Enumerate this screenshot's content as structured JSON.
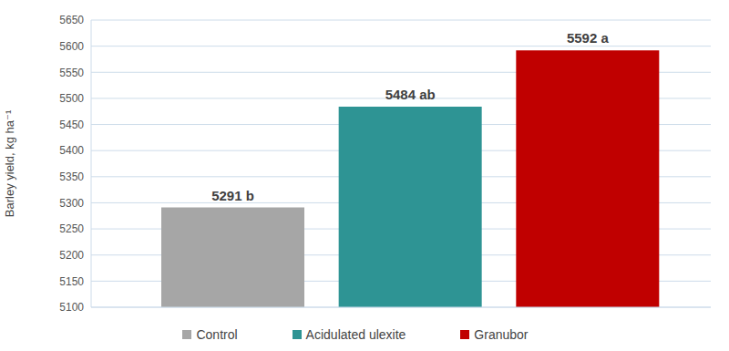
{
  "chart_data": {
    "type": "bar",
    "y_label": "Barley yield, kg ha⁻¹",
    "categories": [
      "Control",
      "Acidulated ulexite",
      "Granubor"
    ],
    "values": [
      5291,
      5484,
      5592
    ],
    "value_labels": [
      "5291 b",
      "5484 ab",
      "5592 a"
    ],
    "colors": [
      "#a6a6a6",
      "#2e9494",
      "#c00000"
    ],
    "ylim": [
      5100,
      5650
    ],
    "yticks": [
      5100,
      5150,
      5200,
      5250,
      5300,
      5350,
      5400,
      5450,
      5500,
      5550,
      5600,
      5650
    ],
    "grid": true,
    "legend": "bottom",
    "data_labels": true,
    "tick_labels": "y"
  }
}
